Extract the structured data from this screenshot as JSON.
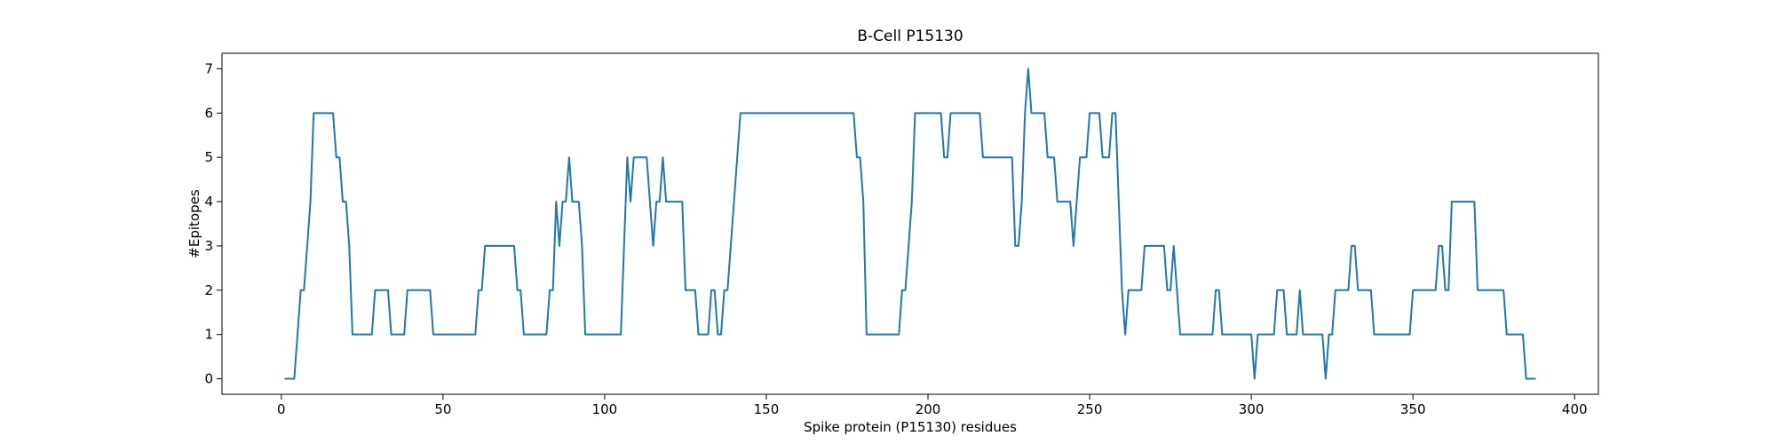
{
  "chart_data": {
    "type": "line",
    "title": "B-Cell P15130",
    "x_label": "Spike protein (P15130) residues",
    "y_label": "#Epitopes",
    "x": [
      1,
      2,
      3,
      4,
      5,
      6,
      7,
      8,
      9,
      10,
      11,
      12,
      13,
      14,
      15,
      16,
      17,
      18,
      19,
      20,
      21,
      22,
      23,
      24,
      25,
      26,
      27,
      28,
      29,
      30,
      31,
      32,
      33,
      34,
      35,
      36,
      37,
      38,
      39,
      40,
      41,
      42,
      43,
      44,
      45,
      46,
      47,
      48,
      49,
      50,
      51,
      52,
      53,
      54,
      55,
      56,
      57,
      58,
      59,
      60,
      61,
      62,
      63,
      64,
      65,
      66,
      67,
      68,
      69,
      70,
      71,
      72,
      73,
      74,
      75,
      76,
      77,
      78,
      79,
      80,
      81,
      82,
      83,
      84,
      85,
      86,
      87,
      88,
      89,
      90,
      91,
      92,
      93,
      94,
      95,
      96,
      97,
      98,
      99,
      100,
      101,
      102,
      103,
      104,
      105,
      106,
      107,
      108,
      109,
      110,
      111,
      112,
      113,
      114,
      115,
      116,
      117,
      118,
      119,
      120,
      121,
      122,
      123,
      124,
      125,
      126,
      127,
      128,
      129,
      130,
      131,
      132,
      133,
      134,
      135,
      136,
      137,
      138,
      139,
      140,
      141,
      142,
      143,
      144,
      145,
      146,
      147,
      148,
      149,
      150,
      151,
      152,
      153,
      154,
      155,
      156,
      157,
      158,
      159,
      160,
      161,
      162,
      163,
      164,
      165,
      166,
      167,
      168,
      169,
      170,
      171,
      172,
      173,
      174,
      175,
      176,
      177,
      178,
      179,
      180,
      181,
      182,
      183,
      184,
      185,
      186,
      187,
      188,
      189,
      190,
      191,
      192,
      193,
      194,
      195,
      196,
      197,
      198,
      199,
      200,
      201,
      202,
      203,
      204,
      205,
      206,
      207,
      208,
      209,
      210,
      211,
      212,
      213,
      214,
      215,
      216,
      217,
      218,
      219,
      220,
      221,
      222,
      223,
      224,
      225,
      226,
      227,
      228,
      229,
      230,
      231,
      232,
      233,
      234,
      235,
      236,
      237,
      238,
      239,
      240,
      241,
      242,
      243,
      244,
      245,
      246,
      247,
      248,
      249,
      250,
      251,
      252,
      253,
      254,
      255,
      256,
      257,
      258,
      259,
      260,
      261,
      262,
      263,
      264,
      265,
      266,
      267,
      268,
      269,
      270,
      271,
      272,
      273,
      274,
      275,
      276,
      277,
      278,
      279,
      280,
      281,
      282,
      283,
      284,
      285,
      286,
      287,
      288,
      289,
      290,
      291,
      292,
      293,
      294,
      295,
      296,
      297,
      298,
      299,
      300,
      301,
      302,
      303,
      304,
      305,
      306,
      307,
      308,
      309,
      310,
      311,
      312,
      313,
      314,
      315,
      316,
      317,
      318,
      319,
      320,
      321,
      322,
      323,
      324,
      325,
      326,
      327,
      328,
      329,
      330,
      331,
      332,
      333,
      334,
      335,
      336,
      337,
      338,
      339,
      340,
      341,
      342,
      343,
      344,
      345,
      346,
      347,
      348,
      349,
      350,
      351,
      352,
      353,
      354,
      355,
      356,
      357,
      358,
      359,
      360,
      361,
      362,
      363,
      364,
      365,
      366,
      367,
      368,
      369,
      370,
      371,
      372,
      373,
      374,
      375,
      376,
      377,
      378,
      379,
      380,
      381,
      382,
      383,
      384,
      385,
      386,
      387,
      388
    ],
    "series": [
      {
        "name": "B-Cell",
        "color": "#1f77b4",
        "values": [
          0,
          0,
          0,
          0,
          1,
          2,
          2,
          3,
          4,
          6,
          6,
          6,
          6,
          6,
          6,
          6,
          5,
          5,
          4,
          4,
          3,
          1,
          1,
          1,
          1,
          1,
          1,
          1,
          2,
          2,
          2,
          2,
          2,
          1,
          1,
          1,
          1,
          1,
          2,
          2,
          2,
          2,
          2,
          2,
          2,
          2,
          1,
          1,
          1,
          1,
          1,
          1,
          1,
          1,
          1,
          1,
          1,
          1,
          1,
          1,
          2,
          2,
          3,
          3,
          3,
          3,
          3,
          3,
          3,
          3,
          3,
          3,
          2,
          2,
          1,
          1,
          1,
          1,
          1,
          1,
          1,
          1,
          2,
          2,
          4,
          3,
          4,
          4,
          5,
          4,
          4,
          4,
          3,
          1,
          1,
          1,
          1,
          1,
          1,
          1,
          1,
          1,
          1,
          1,
          1,
          3,
          5,
          4,
          5,
          5,
          5,
          5,
          5,
          4,
          3,
          4,
          4,
          5,
          4,
          4,
          4,
          4,
          4,
          4,
          2,
          2,
          2,
          2,
          1,
          1,
          1,
          1,
          2,
          2,
          1,
          1,
          2,
          2,
          3,
          4,
          5,
          6,
          6,
          6,
          6,
          6,
          6,
          6,
          6,
          6,
          6,
          6,
          6,
          6,
          6,
          6,
          6,
          6,
          6,
          6,
          6,
          6,
          6,
          6,
          6,
          6,
          6,
          6,
          6,
          6,
          6,
          6,
          6,
          6,
          6,
          6,
          6,
          5,
          5,
          4,
          1,
          1,
          1,
          1,
          1,
          1,
          1,
          1,
          1,
          1,
          1,
          2,
          2,
          3,
          4,
          6,
          6,
          6,
          6,
          6,
          6,
          6,
          6,
          6,
          5,
          5,
          6,
          6,
          6,
          6,
          6,
          6,
          6,
          6,
          6,
          6,
          5,
          5,
          5,
          5,
          5,
          5,
          5,
          5,
          5,
          5,
          3,
          3,
          4,
          6,
          7,
          6,
          6,
          6,
          6,
          6,
          5,
          5,
          5,
          4,
          4,
          4,
          4,
          4,
          3,
          4,
          5,
          5,
          5,
          6,
          6,
          6,
          6,
          5,
          5,
          5,
          6,
          6,
          4,
          2,
          1,
          2,
          2,
          2,
          2,
          2,
          3,
          3,
          3,
          3,
          3,
          3,
          3,
          2,
          2,
          3,
          2,
          1,
          1,
          1,
          1,
          1,
          1,
          1,
          1,
          1,
          1,
          1,
          2,
          2,
          1,
          1,
          1,
          1,
          1,
          1,
          1,
          1,
          1,
          1,
          0,
          1,
          1,
          1,
          1,
          1,
          1,
          2,
          2,
          2,
          1,
          1,
          1,
          1,
          2,
          1,
          1,
          1,
          1,
          1,
          1,
          1,
          0,
          1,
          1,
          2,
          2,
          2,
          2,
          2,
          3,
          3,
          2,
          2,
          2,
          2,
          2,
          1,
          1,
          1,
          1,
          1,
          1,
          1,
          1,
          1,
          1,
          1,
          1,
          2,
          2,
          2,
          2,
          2,
          2,
          2,
          2,
          3,
          3,
          2,
          2,
          4,
          4,
          4,
          4,
          4,
          4,
          4,
          4,
          2,
          2,
          2,
          2,
          2,
          2,
          2,
          2,
          2,
          1,
          1,
          1,
          1,
          1,
          1,
          0,
          0,
          0,
          0
        ]
      }
    ],
    "xlim": [
      -18.35,
      407.35
    ],
    "xticks": [
      0,
      50,
      100,
      150,
      200,
      250,
      300,
      350,
      400
    ],
    "ylim": [
      -0.35,
      7.35
    ],
    "yticks": [
      0,
      1,
      2,
      3,
      4,
      5,
      6,
      7
    ]
  }
}
